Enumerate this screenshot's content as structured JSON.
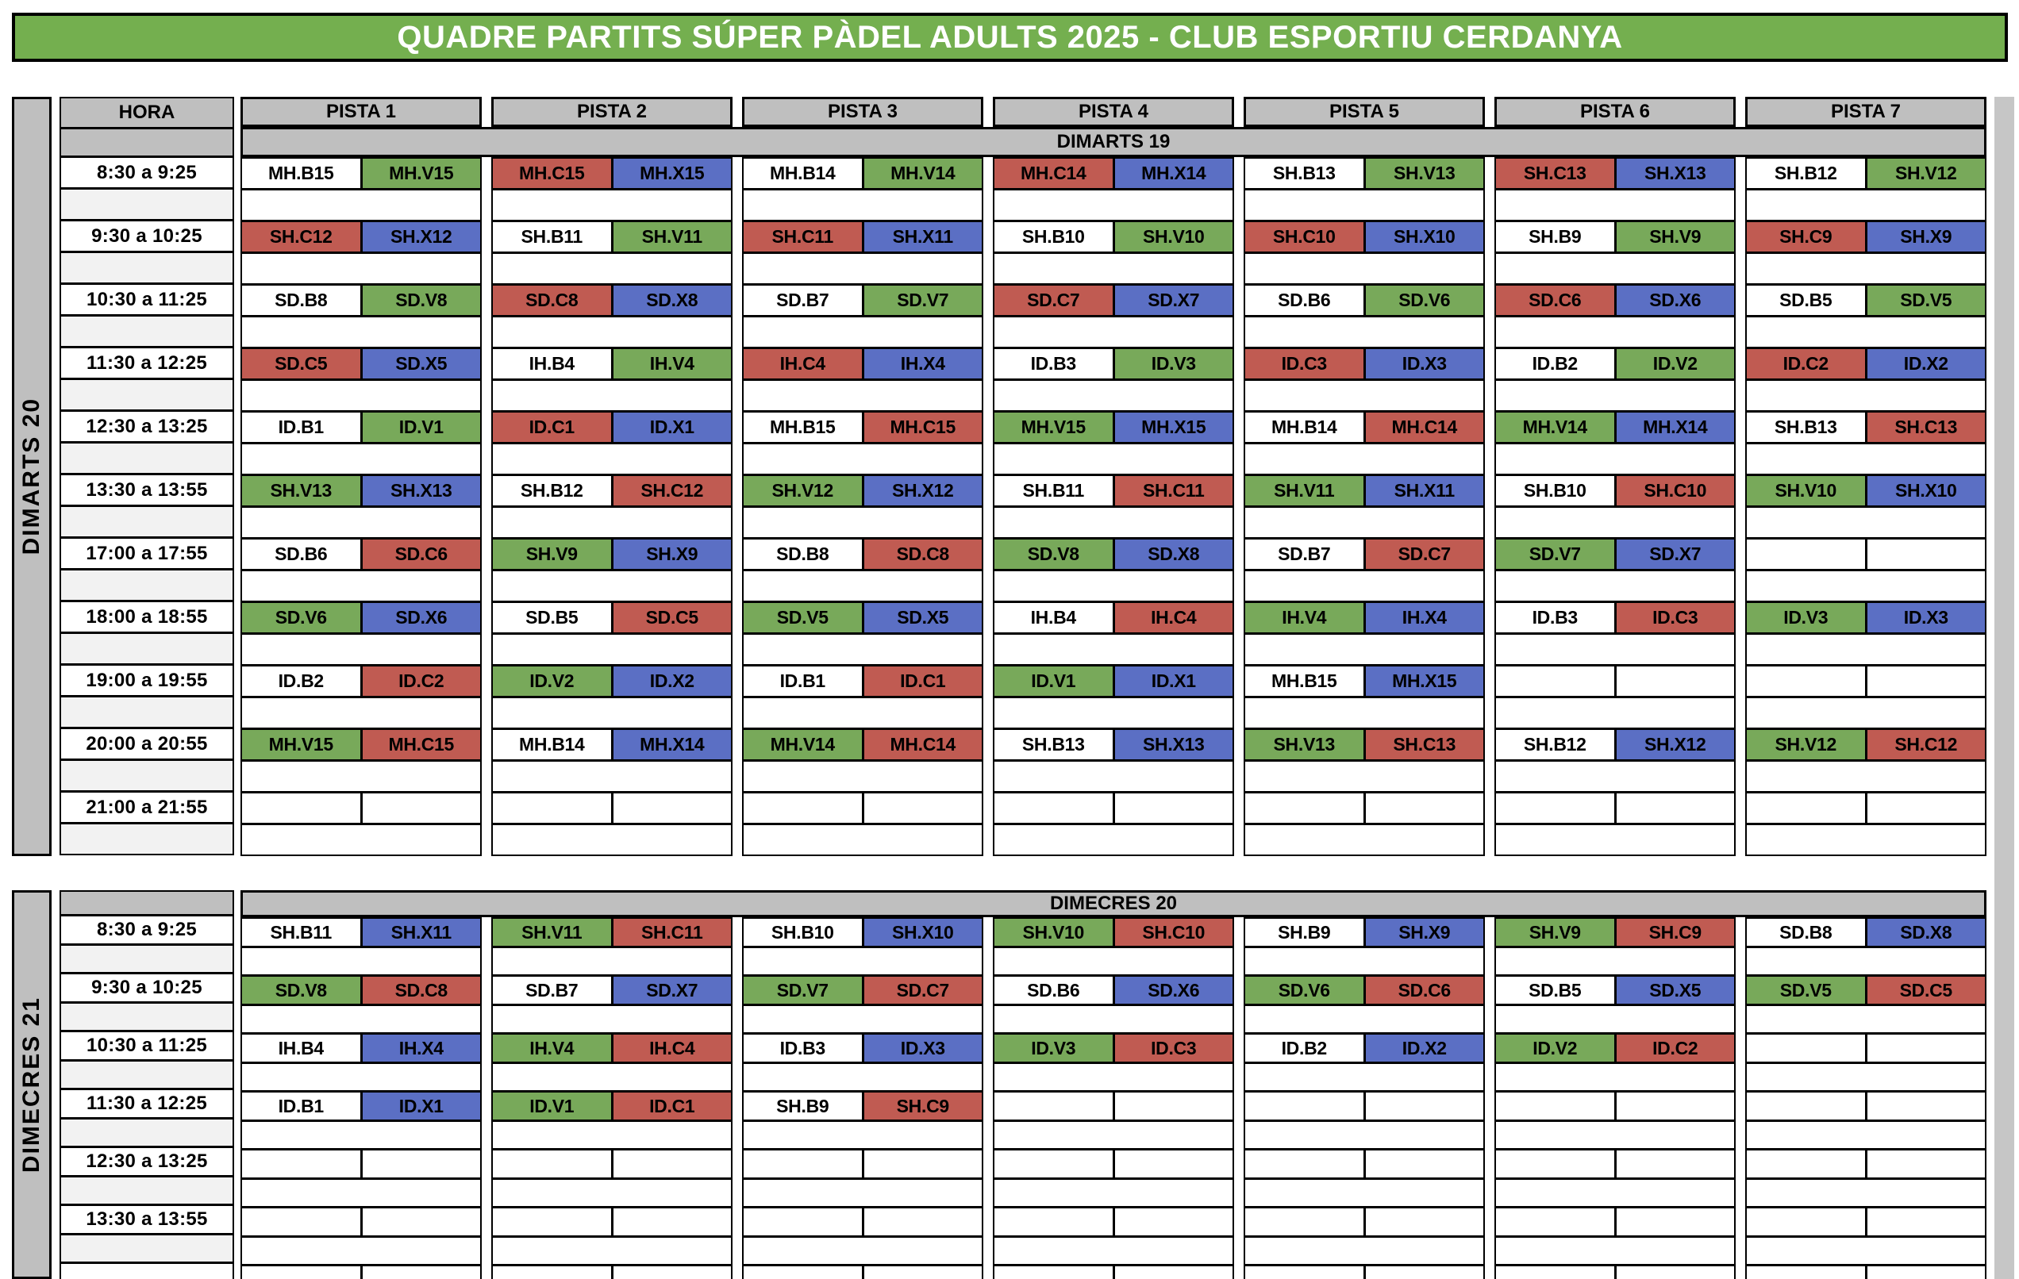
{
  "title": "QUADRE PARTITS SÚPER PÀDEL ADULTS 2025 - CLUB ESPORTIU CERDANYA",
  "columns": {
    "hora": "HORA",
    "pistas": [
      "PISTA 1",
      "PISTA 2",
      "PISTA 3",
      "PISTA 4",
      "PISTA 5",
      "PISTA 6",
      "PISTA 7"
    ]
  },
  "colors": {
    "w": "#FFFFFF",
    "g": "#78A95A",
    "r": "#C05B52",
    "b": "#5B6FC4",
    "header_gray": "#BFBFBF",
    "spacer_gray": "#F2F2F2",
    "title_green": "#74AF4F"
  },
  "sections": [
    {
      "name": "DIMARTS 19",
      "side_label": "DIMARTS 20",
      "has_headers": true,
      "partial_row": false,
      "times": [
        "8:30 a 9:25",
        "9:30 a 10:25",
        "10:30 a 11:25",
        "11:30 a 12:25",
        "12:30 a 13:25",
        "13:30 a 13:55",
        "17:00 a 17:55",
        "18:00 a 18:55",
        "19:00 a 19:55",
        "20:00 a 20:55",
        "21:00 a 21:55"
      ],
      "slots": [
        [
          [
            "MH.B15",
            "w"
          ],
          [
            "MH.V15",
            "g"
          ],
          [
            "MH.C15",
            "r"
          ],
          [
            "MH.X15",
            "b"
          ],
          [
            "MH.B14",
            "w"
          ],
          [
            "MH.V14",
            "g"
          ],
          [
            "MH.C14",
            "r"
          ],
          [
            "MH.X14",
            "b"
          ],
          [
            "SH.B13",
            "w"
          ],
          [
            "SH.V13",
            "g"
          ],
          [
            "SH.C13",
            "r"
          ],
          [
            "SH.X13",
            "b"
          ],
          [
            "SH.B12",
            "w"
          ],
          [
            "SH.V12",
            "g"
          ]
        ],
        [
          [
            "SH.C12",
            "r"
          ],
          [
            "SH.X12",
            "b"
          ],
          [
            "SH.B11",
            "w"
          ],
          [
            "SH.V11",
            "g"
          ],
          [
            "SH.C11",
            "r"
          ],
          [
            "SH.X11",
            "b"
          ],
          [
            "SH.B10",
            "w"
          ],
          [
            "SH.V10",
            "g"
          ],
          [
            "SH.C10",
            "r"
          ],
          [
            "SH.X10",
            "b"
          ],
          [
            "SH.B9",
            "w"
          ],
          [
            "SH.V9",
            "g"
          ],
          [
            "SH.C9",
            "r"
          ],
          [
            "SH.X9",
            "b"
          ]
        ],
        [
          [
            "SD.B8",
            "w"
          ],
          [
            "SD.V8",
            "g"
          ],
          [
            "SD.C8",
            "r"
          ],
          [
            "SD.X8",
            "b"
          ],
          [
            "SD.B7",
            "w"
          ],
          [
            "SD.V7",
            "g"
          ],
          [
            "SD.C7",
            "r"
          ],
          [
            "SD.X7",
            "b"
          ],
          [
            "SD.B6",
            "w"
          ],
          [
            "SD.V6",
            "g"
          ],
          [
            "SD.C6",
            "r"
          ],
          [
            "SD.X6",
            "b"
          ],
          [
            "SD.B5",
            "w"
          ],
          [
            "SD.V5",
            "g"
          ]
        ],
        [
          [
            "SD.C5",
            "r"
          ],
          [
            "SD.X5",
            "b"
          ],
          [
            "IH.B4",
            "w"
          ],
          [
            "IH.V4",
            "g"
          ],
          [
            "IH.C4",
            "r"
          ],
          [
            "IH.X4",
            "b"
          ],
          [
            "ID.B3",
            "w"
          ],
          [
            "ID.V3",
            "g"
          ],
          [
            "ID.C3",
            "r"
          ],
          [
            "ID.X3",
            "b"
          ],
          [
            "ID.B2",
            "w"
          ],
          [
            "ID.V2",
            "g"
          ],
          [
            "ID.C2",
            "r"
          ],
          [
            "ID.X2",
            "b"
          ]
        ],
        [
          [
            "ID.B1",
            "w"
          ],
          [
            "ID.V1",
            "g"
          ],
          [
            "ID.C1",
            "r"
          ],
          [
            "ID.X1",
            "b"
          ],
          [
            "MH.B15",
            "w"
          ],
          [
            "MH.C15",
            "r"
          ],
          [
            "MH.V15",
            "g"
          ],
          [
            "MH.X15",
            "b"
          ],
          [
            "MH.B14",
            "w"
          ],
          [
            "MH.C14",
            "r"
          ],
          [
            "MH.V14",
            "g"
          ],
          [
            "MH.X14",
            "b"
          ],
          [
            "SH.B13",
            "w"
          ],
          [
            "SH.C13",
            "r"
          ]
        ],
        [
          [
            "SH.V13",
            "g"
          ],
          [
            "SH.X13",
            "b"
          ],
          [
            "SH.B12",
            "w"
          ],
          [
            "SH.C12",
            "r"
          ],
          [
            "SH.V12",
            "g"
          ],
          [
            "SH.X12",
            "b"
          ],
          [
            "SH.B11",
            "w"
          ],
          [
            "SH.C11",
            "r"
          ],
          [
            "SH.V11",
            "g"
          ],
          [
            "SH.X11",
            "b"
          ],
          [
            "SH.B10",
            "w"
          ],
          [
            "SH.C10",
            "r"
          ],
          [
            "SH.V10",
            "g"
          ],
          [
            "SH.X10",
            "b"
          ]
        ],
        [
          [
            "SD.B6",
            "w"
          ],
          [
            "SD.C6",
            "r"
          ],
          [
            "SH.V9",
            "g"
          ],
          [
            "SH.X9",
            "b"
          ],
          [
            "SD.B8",
            "w"
          ],
          [
            "SD.C8",
            "r"
          ],
          [
            "SD.V8",
            "g"
          ],
          [
            "SD.X8",
            "b"
          ],
          [
            "SD.B7",
            "w"
          ],
          [
            "SD.C7",
            "r"
          ],
          [
            "SD.V7",
            "g"
          ],
          [
            "SD.X7",
            "b"
          ],
          [
            "",
            "w"
          ],
          [
            "",
            "w"
          ]
        ],
        [
          [
            "SD.V6",
            "g"
          ],
          [
            "SD.X6",
            "b"
          ],
          [
            "SD.B5",
            "w"
          ],
          [
            "SD.C5",
            "r"
          ],
          [
            "SD.V5",
            "g"
          ],
          [
            "SD.X5",
            "b"
          ],
          [
            "IH.B4",
            "w"
          ],
          [
            "IH.C4",
            "r"
          ],
          [
            "IH.V4",
            "g"
          ],
          [
            "IH.X4",
            "b"
          ],
          [
            "ID.B3",
            "w"
          ],
          [
            "ID.C3",
            "r"
          ],
          [
            "ID.V3",
            "g"
          ],
          [
            "ID.X3",
            "b"
          ]
        ],
        [
          [
            "ID.B2",
            "w"
          ],
          [
            "ID.C2",
            "r"
          ],
          [
            "ID.V2",
            "g"
          ],
          [
            "ID.X2",
            "b"
          ],
          [
            "ID.B1",
            "w"
          ],
          [
            "ID.C1",
            "r"
          ],
          [
            "ID.V1",
            "g"
          ],
          [
            "ID.X1",
            "b"
          ],
          [
            "MH.B15",
            "w"
          ],
          [
            "MH.X15",
            "b"
          ],
          [
            "",
            "w"
          ],
          [
            "",
            "w"
          ],
          [
            "",
            "w"
          ],
          [
            "",
            "w"
          ]
        ],
        [
          [
            "MH.V15",
            "g"
          ],
          [
            "MH.C15",
            "r"
          ],
          [
            "MH.B14",
            "w"
          ],
          [
            "MH.X14",
            "b"
          ],
          [
            "MH.V14",
            "g"
          ],
          [
            "MH.C14",
            "r"
          ],
          [
            "SH.B13",
            "w"
          ],
          [
            "SH.X13",
            "b"
          ],
          [
            "SH.V13",
            "g"
          ],
          [
            "SH.C13",
            "r"
          ],
          [
            "SH.B12",
            "w"
          ],
          [
            "SH.X12",
            "b"
          ],
          [
            "SH.V12",
            "g"
          ],
          [
            "SH.C12",
            "r"
          ]
        ],
        [
          [
            "",
            "w"
          ],
          [
            "",
            "w"
          ],
          [
            "",
            "w"
          ],
          [
            "",
            "w"
          ],
          [
            "",
            "w"
          ],
          [
            "",
            "w"
          ],
          [
            "",
            "w"
          ],
          [
            "",
            "w"
          ],
          [
            "",
            "w"
          ],
          [
            "",
            "w"
          ],
          [
            "",
            "w"
          ],
          [
            "",
            "w"
          ],
          [
            "",
            "w"
          ],
          [
            "",
            "w"
          ]
        ]
      ]
    },
    {
      "name": "DIMECRES 20",
      "side_label": "DIMECRES 21",
      "has_headers": false,
      "partial_row": true,
      "times": [
        "8:30 a 9:25",
        "9:30 a 10:25",
        "10:30 a 11:25",
        "11:30 a 12:25",
        "12:30 a 13:25",
        "13:30 a 13:55"
      ],
      "slots": [
        [
          [
            "SH.B11",
            "w"
          ],
          [
            "SH.X11",
            "b"
          ],
          [
            "SH.V11",
            "g"
          ],
          [
            "SH.C11",
            "r"
          ],
          [
            "SH.B10",
            "w"
          ],
          [
            "SH.X10",
            "b"
          ],
          [
            "SH.V10",
            "g"
          ],
          [
            "SH.C10",
            "r"
          ],
          [
            "SH.B9",
            "w"
          ],
          [
            "SH.X9",
            "b"
          ],
          [
            "SH.V9",
            "g"
          ],
          [
            "SH.C9",
            "r"
          ],
          [
            "SD.B8",
            "w"
          ],
          [
            "SD.X8",
            "b"
          ]
        ],
        [
          [
            "SD.V8",
            "g"
          ],
          [
            "SD.C8",
            "r"
          ],
          [
            "SD.B7",
            "w"
          ],
          [
            "SD.X7",
            "b"
          ],
          [
            "SD.V7",
            "g"
          ],
          [
            "SD.C7",
            "r"
          ],
          [
            "SD.B6",
            "w"
          ],
          [
            "SD.X6",
            "b"
          ],
          [
            "SD.V6",
            "g"
          ],
          [
            "SD.C6",
            "r"
          ],
          [
            "SD.B5",
            "w"
          ],
          [
            "SD.X5",
            "b"
          ],
          [
            "SD.V5",
            "g"
          ],
          [
            "SD.C5",
            "r"
          ]
        ],
        [
          [
            "IH.B4",
            "w"
          ],
          [
            "IH.X4",
            "b"
          ],
          [
            "IH.V4",
            "g"
          ],
          [
            "IH.C4",
            "r"
          ],
          [
            "ID.B3",
            "w"
          ],
          [
            "ID.X3",
            "b"
          ],
          [
            "ID.V3",
            "g"
          ],
          [
            "ID.C3",
            "r"
          ],
          [
            "ID.B2",
            "w"
          ],
          [
            "ID.X2",
            "b"
          ],
          [
            "ID.V2",
            "g"
          ],
          [
            "ID.C2",
            "r"
          ],
          [
            "",
            "w"
          ],
          [
            "",
            "w"
          ]
        ],
        [
          [
            "ID.B1",
            "w"
          ],
          [
            "ID.X1",
            "b"
          ],
          [
            "ID.V1",
            "g"
          ],
          [
            "ID.C1",
            "r"
          ],
          [
            "SH.B9",
            "w"
          ],
          [
            "SH.C9",
            "r"
          ],
          [
            "",
            "w"
          ],
          [
            "",
            "w"
          ],
          [
            "",
            "w"
          ],
          [
            "",
            "w"
          ],
          [
            "",
            "w"
          ],
          [
            "",
            "w"
          ],
          [
            "",
            "w"
          ],
          [
            "",
            "w"
          ]
        ],
        [
          [
            "",
            "w"
          ],
          [
            "",
            "w"
          ],
          [
            "",
            "w"
          ],
          [
            "",
            "w"
          ],
          [
            "",
            "w"
          ],
          [
            "",
            "w"
          ],
          [
            "",
            "w"
          ],
          [
            "",
            "w"
          ],
          [
            "",
            "w"
          ],
          [
            "",
            "w"
          ],
          [
            "",
            "w"
          ],
          [
            "",
            "w"
          ],
          [
            "",
            "w"
          ],
          [
            "",
            "w"
          ]
        ],
        [
          [
            "",
            "w"
          ],
          [
            "",
            "w"
          ],
          [
            "",
            "w"
          ],
          [
            "",
            "w"
          ],
          [
            "",
            "w"
          ],
          [
            "",
            "w"
          ],
          [
            "",
            "w"
          ],
          [
            "",
            "w"
          ],
          [
            "",
            "w"
          ],
          [
            "",
            "w"
          ],
          [
            "",
            "w"
          ],
          [
            "",
            "w"
          ],
          [
            "",
            "w"
          ],
          [
            "",
            "w"
          ]
        ]
      ]
    }
  ]
}
